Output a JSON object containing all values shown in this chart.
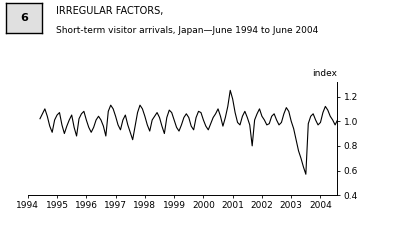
{
  "title_main": "IRREGULAR FACTORS,",
  "title_sub": "Short-term visitor arrivals, Japan—June 1994 to June 2004",
  "ylabel": "index",
  "box_number": "6",
  "xlim_start": 1994.0,
  "xlim_end": 2004.58,
  "ylim": [
    0.4,
    1.32
  ],
  "yticks": [
    0.4,
    0.6,
    0.8,
    1.0,
    1.2
  ],
  "xtick_years": [
    1994,
    1995,
    1996,
    1997,
    1998,
    1999,
    2000,
    2001,
    2002,
    2003,
    2004
  ],
  "line_color": "#000000",
  "line_width": 0.8,
  "background_color": "#ffffff",
  "values": [
    1.02,
    1.06,
    1.1,
    1.04,
    0.96,
    0.91,
    1.01,
    1.05,
    1.07,
    0.97,
    0.9,
    0.96,
    1.01,
    1.05,
    0.95,
    0.88,
    1.02,
    1.06,
    1.08,
    1.01,
    0.95,
    0.91,
    0.95,
    1.01,
    1.04,
    1.01,
    0.96,
    0.88,
    1.08,
    1.13,
    1.1,
    1.04,
    0.97,
    0.93,
    1.01,
    1.05,
    0.97,
    0.91,
    0.85,
    0.96,
    1.07,
    1.13,
    1.1,
    1.04,
    0.97,
    0.92,
    1.01,
    1.04,
    1.07,
    1.03,
    0.96,
    0.9,
    1.03,
    1.09,
    1.07,
    1.01,
    0.95,
    0.92,
    0.97,
    1.03,
    1.06,
    1.03,
    0.96,
    0.93,
    1.03,
    1.08,
    1.07,
    1.01,
    0.96,
    0.93,
    0.98,
    1.03,
    1.06,
    1.1,
    1.04,
    0.96,
    1.03,
    1.12,
    1.25,
    1.18,
    1.07,
    0.99,
    0.97,
    1.04,
    1.08,
    1.03,
    0.97,
    0.8,
    1.01,
    1.06,
    1.1,
    1.04,
    1.01,
    0.97,
    0.98,
    1.04,
    1.06,
    1.01,
    0.97,
    0.99,
    1.06,
    1.11,
    1.08,
    1.0,
    0.94,
    0.85,
    0.76,
    0.7,
    0.63,
    0.57,
    0.98,
    1.04,
    1.06,
    1.01,
    0.97,
    0.99,
    1.07,
    1.12,
    1.09,
    1.04,
    1.01,
    0.97,
    1.01,
    1.03,
    1.07,
    1.1,
    1.05,
    0.97,
    1.06,
    1.11
  ],
  "start_year": 1994,
  "start_month": 6
}
